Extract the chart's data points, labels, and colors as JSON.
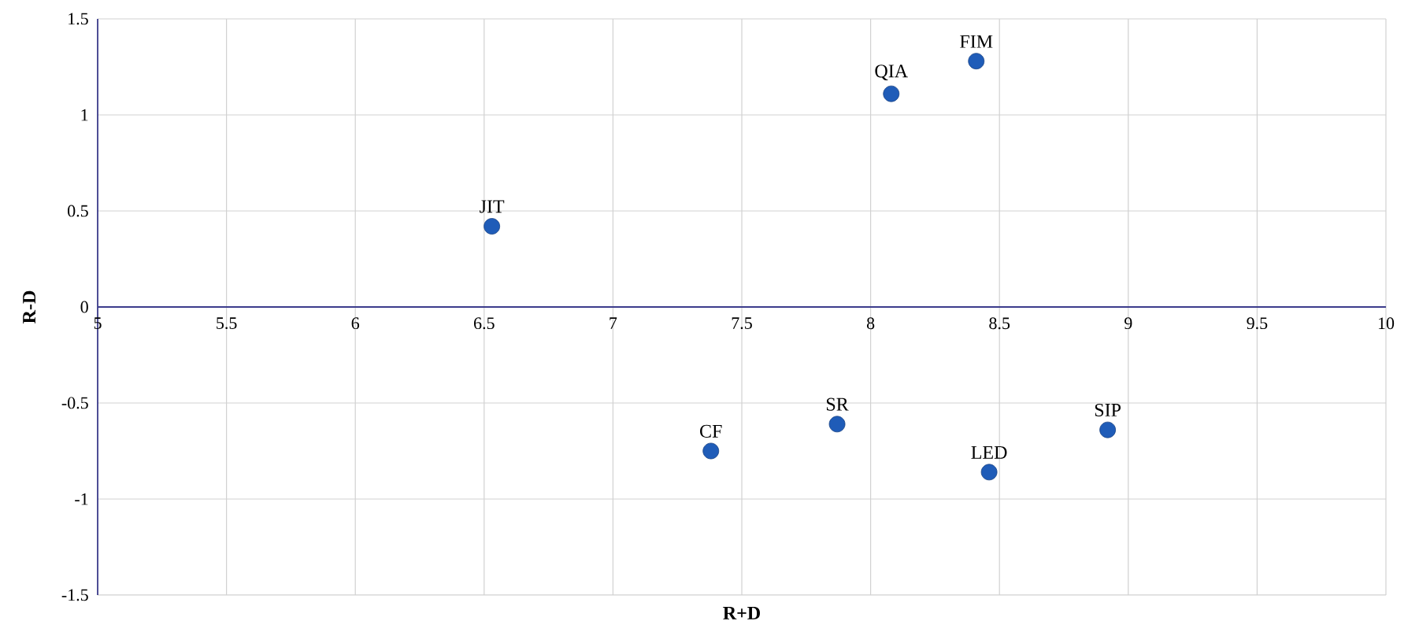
{
  "chart_data": {
    "type": "scatter",
    "xlabel": "R+D",
    "ylabel": "R-D",
    "x": [
      6.53,
      8.08,
      8.41,
      7.38,
      7.87,
      8.46,
      8.92
    ],
    "values": [
      0.42,
      1.11,
      1.28,
      -0.75,
      -0.61,
      -0.86,
      -0.64
    ],
    "color": "#1f5cb8",
    "marker": "circle",
    "grid": true,
    "xlim": [
      5,
      10
    ],
    "ylim": [
      -1.5,
      1.5
    ],
    "xticks": [
      5,
      5.5,
      6,
      6.5,
      7,
      7.5,
      8,
      8.5,
      9,
      9.5,
      10
    ],
    "yticks": [
      -1.5,
      -1,
      -0.5,
      0,
      0.5,
      1,
      1.5
    ],
    "annotations": [
      {
        "text": "JIT",
        "x": 6.53,
        "y": 0.42
      },
      {
        "text": "QIA",
        "x": 8.08,
        "y": 1.11
      },
      {
        "text": "FIM",
        "x": 8.41,
        "y": 1.28
      },
      {
        "text": "CF",
        "x": 7.38,
        "y": -0.75
      },
      {
        "text": "SR",
        "x": 7.87,
        "y": -0.61
      },
      {
        "text": "LED",
        "x": 8.46,
        "y": -0.86
      },
      {
        "text": "SIP",
        "x": 8.92,
        "y": -0.64
      }
    ]
  }
}
